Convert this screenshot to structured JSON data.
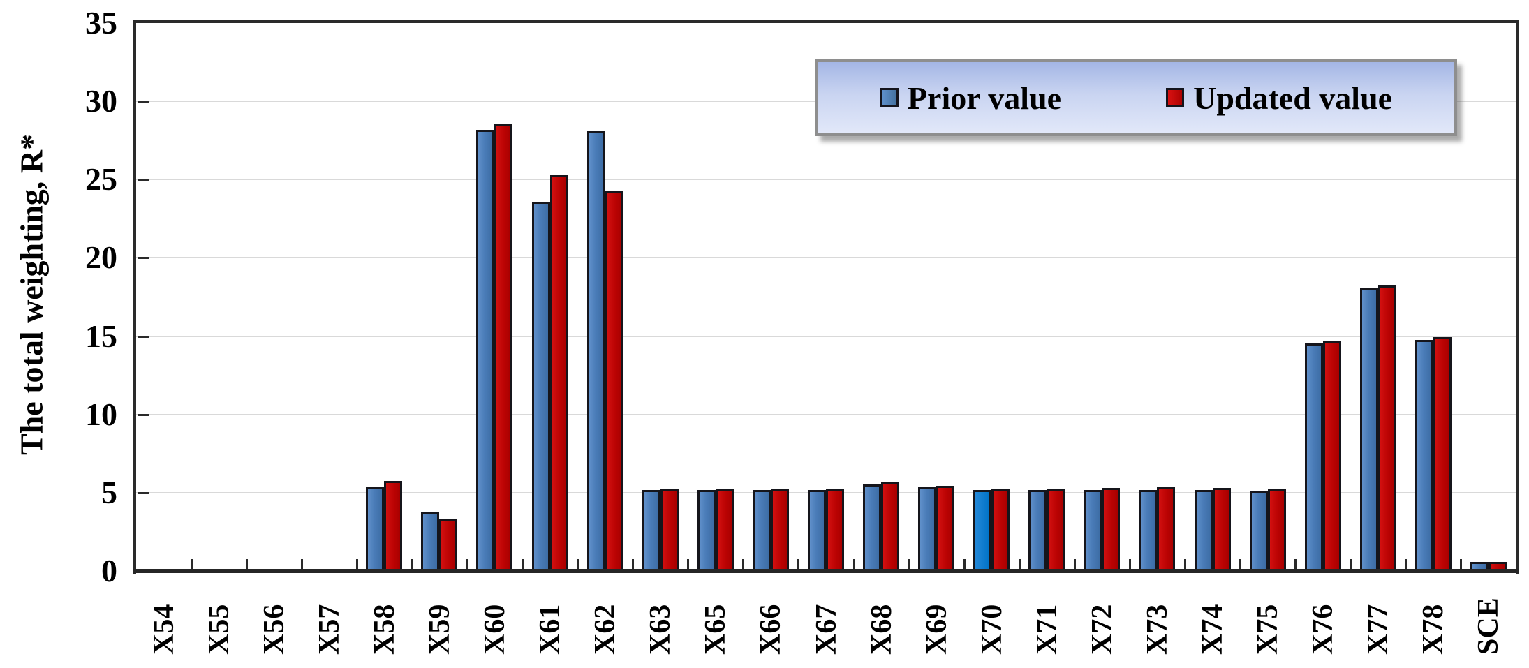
{
  "chart_data": {
    "type": "bar",
    "title": "",
    "xlabel": "",
    "ylabel": "The total weighting, R*",
    "ylim": [
      0,
      35
    ],
    "yticks": [
      0,
      5,
      10,
      15,
      20,
      25,
      30,
      35
    ],
    "grid": "horizontal",
    "grid_color": "#d9d9d9",
    "axis_color": "#2a2a2a",
    "legend_position": "top-right-inside",
    "categories": [
      "X54",
      "X55",
      "X56",
      "X57",
      "X58",
      "X59",
      "X60",
      "X61",
      "X62",
      "X63",
      "X65",
      "X66",
      "X67",
      "X68",
      "X69",
      "X70",
      "X71",
      "X72",
      "X73",
      "X74",
      "X75",
      "X76",
      "X77",
      "X78",
      "SCE"
    ],
    "series": [
      {
        "name": "Prior value",
        "color": "#4a7cb8",
        "values": [
          0,
          0,
          0,
          0,
          5.35,
          3.8,
          28.2,
          23.6,
          28.1,
          5.15,
          5.15,
          5.15,
          5.15,
          5.55,
          5.35,
          5.15,
          5.15,
          5.15,
          5.15,
          5.15,
          5.1,
          14.55,
          18.1,
          14.75,
          0.6
        ]
      },
      {
        "name": "Updated value",
        "color": "#c00505",
        "values": [
          0,
          0,
          0,
          0,
          5.75,
          3.35,
          28.6,
          25.3,
          24.3,
          5.25,
          5.25,
          5.25,
          5.25,
          5.7,
          5.45,
          5.25,
          5.25,
          5.3,
          5.35,
          5.3,
          5.2,
          14.65,
          18.25,
          14.95,
          0.6
        ]
      }
    ],
    "special_bar_colors": [
      {
        "series": "Prior value",
        "category": "X70",
        "color": "#0b79cd"
      }
    ]
  },
  "legend": {
    "items": [
      {
        "label": "Prior value",
        "color": "#4a7cb8"
      },
      {
        "label": "Updated value",
        "color": "#c00505"
      }
    ],
    "background_top": "#a4b6e5",
    "background_bottom": "#e2e8f9",
    "border_color": "#8e8e8e"
  }
}
